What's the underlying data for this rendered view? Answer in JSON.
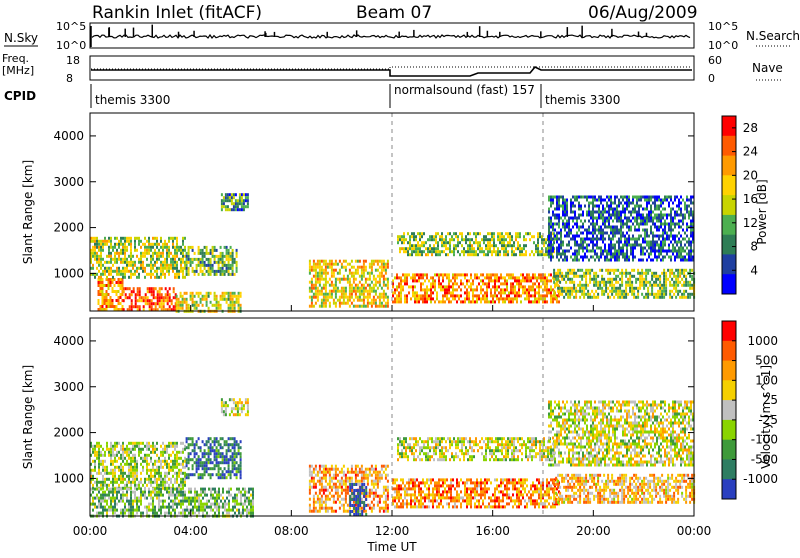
{
  "header": {
    "station": "Rankin Inlet (fitACF)",
    "beam": "Beam 07",
    "date": "06/Aug/2009"
  },
  "top_panels": {
    "nsky_label": "N.Sky",
    "nsearch_label": "N.Search",
    "count_ticks": [
      "10^5",
      "10^0"
    ],
    "freq_label": "Freq.",
    "freq_unit": "[MHz]",
    "freq_ticks": [
      "18",
      "8"
    ],
    "nave_label": "Nave",
    "nave_ticks": [
      "60",
      "0"
    ],
    "cpid_label": "CPID",
    "cpid_segments": [
      {
        "label": "themis 3300",
        "start": "00:00"
      },
      {
        "label": "normalsound (fast) 157",
        "start": "12:00"
      },
      {
        "label": "themis 3300",
        "start": "18:00"
      }
    ]
  },
  "colors": {
    "power_scale": [
      "#0000ff",
      "#1f3fa0",
      "#2e7d55",
      "#4caf50",
      "#c8d400",
      "#ffd200",
      "#ff9a00",
      "#ff5a00",
      "#ff0000"
    ],
    "velocity_scale": [
      "#2a3fbf",
      "#2e7d62",
      "#3e9a3a",
      "#8ad400",
      "#c0c0c0",
      "#f5d000",
      "#ff9a00",
      "#ff5a00",
      "#ff0000"
    ]
  },
  "chart_data": [
    {
      "type": "heatmap",
      "quantity": "power",
      "xlabel": "Time UT",
      "ylabel": "Slant Range [km]",
      "xlim": [
        "00:00",
        "24:00"
      ],
      "xticks": [
        "00:00",
        "04:00",
        "08:00",
        "12:00",
        "16:00",
        "20:00",
        "00:00"
      ],
      "ylim": [
        180,
        4500
      ],
      "yticks": [
        1000,
        2000,
        3000,
        4000
      ],
      "colorbar_label": "Power [dB]",
      "colorbar_ticks": [
        4,
        8,
        12,
        16,
        20,
        24,
        28
      ],
      "colorbar_range": [
        0,
        30
      ],
      "echo_regions": [
        {
          "t": [
            0.3,
            1.3
          ],
          "range": [
            200,
            900
          ],
          "level": 0.7
        },
        {
          "t": [
            1.3,
            3.4
          ],
          "range": [
            200,
            700
          ],
          "level": 0.85
        },
        {
          "t": [
            3.4,
            6.0
          ],
          "range": [
            200,
            600
          ],
          "level": 0.55
        },
        {
          "t": [
            0.0,
            3.8
          ],
          "range": [
            900,
            1800
          ],
          "level": 0.5
        },
        {
          "t": [
            3.8,
            5.8
          ],
          "range": [
            1000,
            1600
          ],
          "level": 0.4
        },
        {
          "t": [
            5.2,
            6.3
          ],
          "range": [
            2400,
            2750
          ],
          "level": 0.3
        },
        {
          "t": [
            8.7,
            11.8
          ],
          "range": [
            300,
            1300
          ],
          "level": 0.6
        },
        {
          "t": [
            12.0,
            18.6
          ],
          "range": [
            400,
            1000
          ],
          "level": 0.75
        },
        {
          "t": [
            12.2,
            18.4
          ],
          "range": [
            1400,
            1900
          ],
          "level": 0.45
        },
        {
          "t": [
            18.2,
            24.0
          ],
          "range": [
            1300,
            2700
          ],
          "level": 0.2
        },
        {
          "t": [
            18.4,
            24.0
          ],
          "range": [
            500,
            1100
          ],
          "level": 0.45
        }
      ]
    },
    {
      "type": "heatmap",
      "quantity": "velocity",
      "xlabel": "Time UT",
      "ylabel": "Slant Range [km]",
      "xlim": [
        "00:00",
        "24:00"
      ],
      "xticks": [
        "00:00",
        "04:00",
        "08:00",
        "12:00",
        "16:00",
        "20:00",
        "00:00"
      ],
      "ylim": [
        180,
        4500
      ],
      "yticks": [
        1000,
        2000,
        3000,
        4000
      ],
      "colorbar_label": "Velocity [m s^-1]",
      "colorbar_ticks": [
        "1000",
        "500",
        "100",
        "25",
        "-25",
        "-100",
        "-500",
        "-1000"
      ],
      "echo_regions": [
        {
          "t": [
            0.0,
            3.8
          ],
          "range": [
            800,
            1800
          ],
          "level": 0.45
        },
        {
          "t": [
            3.8,
            6.0
          ],
          "range": [
            1000,
            1900
          ],
          "level": 0.15
        },
        {
          "t": [
            0.0,
            6.5
          ],
          "range": [
            200,
            800
          ],
          "level": 0.35
        },
        {
          "t": [
            5.2,
            6.3
          ],
          "range": [
            2400,
            2750
          ],
          "level": 0.5
        },
        {
          "t": [
            8.7,
            11.8
          ],
          "range": [
            300,
            1300
          ],
          "level": 0.7
        },
        {
          "t": [
            10.3,
            11.0
          ],
          "range": [
            200,
            900
          ],
          "level": 0.05
        },
        {
          "t": [
            12.0,
            18.6
          ],
          "range": [
            400,
            1000
          ],
          "level": 0.75
        },
        {
          "t": [
            12.2,
            18.4
          ],
          "range": [
            1400,
            1900
          ],
          "level": 0.5
        },
        {
          "t": [
            18.2,
            24.0
          ],
          "range": [
            1300,
            2700
          ],
          "level": 0.5
        },
        {
          "t": [
            18.4,
            24.0
          ],
          "range": [
            500,
            1100
          ],
          "level": 0.65
        }
      ]
    }
  ]
}
